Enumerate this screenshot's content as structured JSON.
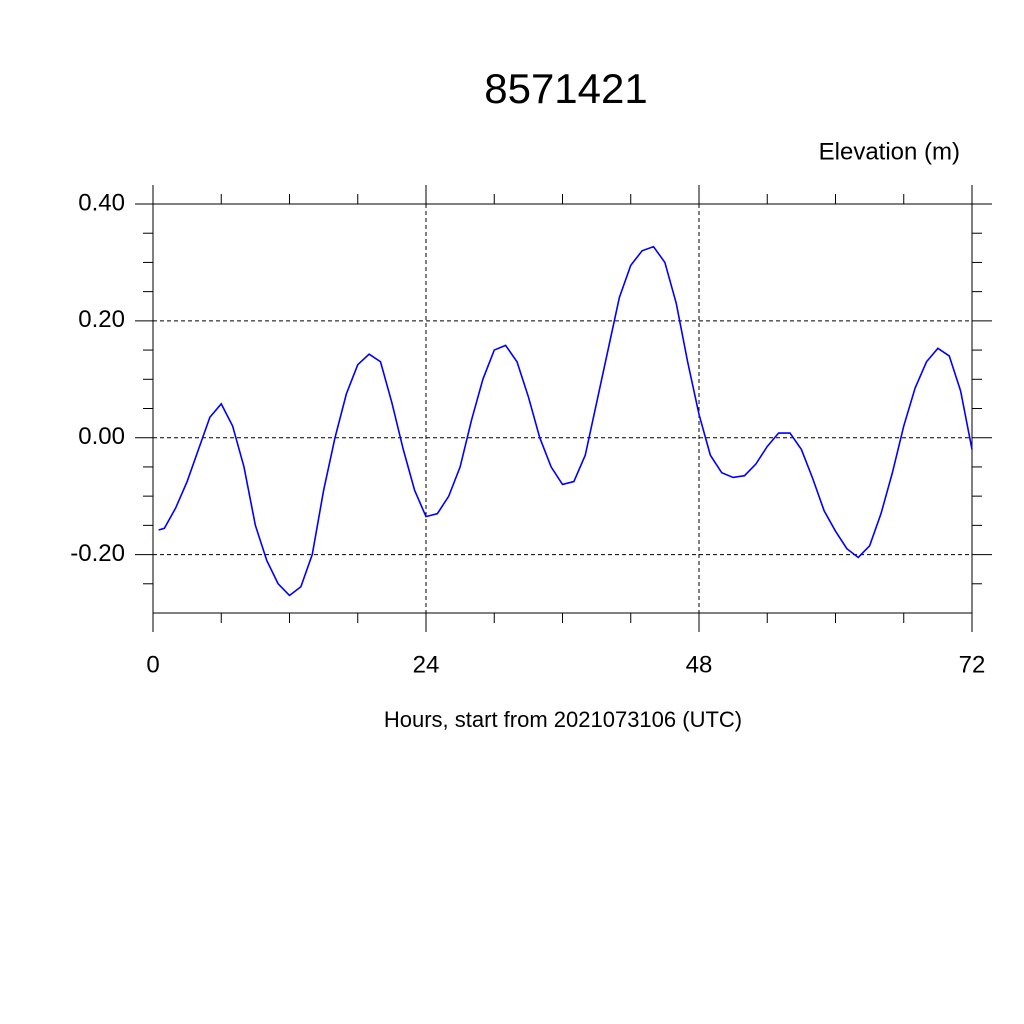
{
  "chart_data": {
    "type": "line",
    "title": "8571421",
    "y_label": "Elevation (m)",
    "x_label": "Hours, start from 2021073106 (UTC)",
    "xlim": [
      0,
      72
    ],
    "ylim": [
      -0.3,
      0.4
    ],
    "xticks": [
      0,
      24,
      48,
      72
    ],
    "xminorticks": [
      6,
      12,
      18,
      30,
      36,
      42,
      54,
      60,
      66
    ],
    "yticks": [
      {
        "value": -0.2,
        "label": "-0.20"
      },
      {
        "value": 0,
        "label": "0.00"
      },
      {
        "value": 0.2,
        "label": "0.20"
      },
      {
        "value": 0.4,
        "label": "0.40"
      }
    ],
    "yminorticks": [
      -0.25,
      -0.15,
      -0.1,
      -0.05,
      0.05,
      0.1,
      0.15,
      0.25,
      0.3,
      0.35
    ],
    "grid": true,
    "series": [
      {
        "name": "Elevation",
        "color": "#0000ff",
        "x": [
          0.5,
          1,
          2,
          3,
          4,
          5,
          6,
          7,
          8,
          9,
          10,
          11,
          12,
          13,
          14,
          15,
          16,
          17,
          18,
          19,
          20,
          21,
          22,
          23,
          24,
          25,
          26,
          27,
          28,
          29,
          30,
          31,
          32,
          33,
          34,
          35,
          36,
          37,
          38,
          39,
          40,
          41,
          42,
          43,
          44,
          45,
          46,
          47,
          48,
          49,
          50,
          51,
          52,
          53,
          54,
          55,
          56,
          57,
          58,
          59,
          60,
          61,
          62,
          63,
          64,
          65,
          66,
          67,
          68,
          69,
          70,
          71,
          72
        ],
        "values": [
          -0.158,
          -0.155,
          -0.12,
          -0.075,
          -0.02,
          0.035,
          0.058,
          0.02,
          -0.05,
          -0.15,
          -0.21,
          -0.25,
          -0.27,
          -0.255,
          -0.2,
          -0.09,
          0.0,
          0.075,
          0.125,
          0.143,
          0.13,
          0.06,
          -0.02,
          -0.09,
          -0.135,
          -0.13,
          -0.1,
          -0.05,
          0.03,
          0.1,
          0.15,
          0.158,
          0.13,
          0.07,
          0.0,
          -0.05,
          -0.08,
          -0.075,
          -0.03,
          0.06,
          0.15,
          0.24,
          0.295,
          0.32,
          0.327,
          0.3,
          0.23,
          0.13,
          0.04,
          -0.03,
          -0.06,
          -0.068,
          -0.065,
          -0.045,
          -0.015,
          0.008,
          0.008,
          -0.02,
          -0.07,
          -0.125,
          -0.16,
          -0.19,
          -0.205,
          -0.185,
          -0.13,
          -0.06,
          0.02,
          0.085,
          0.13,
          0.153,
          0.14,
          0.08,
          -0.02
        ]
      }
    ]
  }
}
